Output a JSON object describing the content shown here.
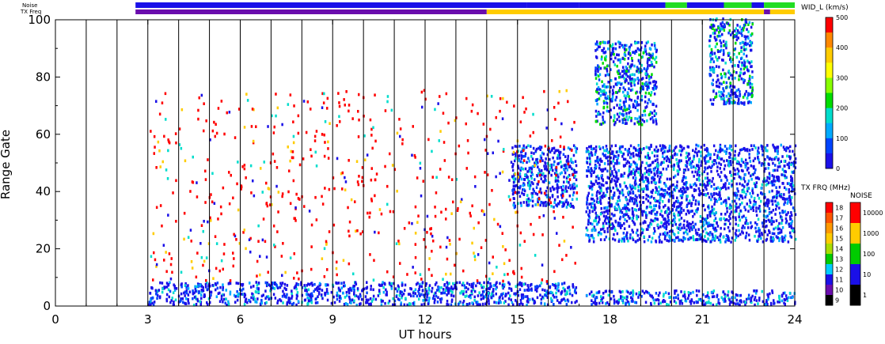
{
  "chart_data": {
    "type": "heatmap",
    "xlabel": "UT hours",
    "ylabel": "Range Gate",
    "xlim": [
      0,
      24
    ],
    "ylim": [
      0,
      100
    ],
    "xticks": [
      "0",
      "3",
      "6",
      "9",
      "12",
      "15",
      "18",
      "21",
      "24"
    ],
    "yticks": [
      "0",
      "20",
      "40",
      "60",
      "80",
      "100"
    ],
    "scan_boundary_hours": [
      1,
      2,
      3,
      4,
      5,
      6,
      7,
      8,
      9,
      10,
      11,
      12,
      13,
      14,
      15,
      16,
      18,
      19,
      20,
      21,
      22,
      23
    ],
    "data_gap_hours": [
      16.9,
      17.2
    ],
    "top_bars": {
      "noise_label": "Noise",
      "freq_label": "TX Freq",
      "noise_segments": [
        {
          "start": 2.6,
          "end": 15.3,
          "color": "#1a10e8"
        },
        {
          "start": 15.3,
          "end": 17.0,
          "color": "#1a10e8"
        },
        {
          "start": 17.0,
          "end": 19.8,
          "color": "#1a10e8"
        },
        {
          "start": 19.8,
          "end": 20.5,
          "color": "#22dd22"
        },
        {
          "start": 20.5,
          "end": 21.7,
          "color": "#1a10e8"
        },
        {
          "start": 21.7,
          "end": 22.6,
          "color": "#22dd22"
        },
        {
          "start": 22.6,
          "end": 23.0,
          "color": "#1a10e8"
        },
        {
          "start": 23.0,
          "end": 24.0,
          "color": "#22dd22"
        }
      ],
      "freq_segments": [
        {
          "start": 2.6,
          "end": 14.0,
          "color": "#6a0dad"
        },
        {
          "start": 14.0,
          "end": 23.0,
          "color": "#ffcc00"
        },
        {
          "start": 23.0,
          "end": 23.2,
          "color": "#6a0dad"
        },
        {
          "start": 23.2,
          "end": 24.0,
          "color": "#ffcc00"
        }
      ]
    },
    "echo_regions": [
      {
        "name": "near-range band",
        "x_range": [
          3.0,
          16.9
        ],
        "gate_range": [
          0,
          8
        ],
        "dominant_width_kms": "0-100"
      },
      {
        "name": "near-range band",
        "x_range": [
          17.2,
          24.0
        ],
        "gate_range": [
          0,
          5
        ],
        "dominant_width_kms": "0-100"
      },
      {
        "name": "mid-range patch",
        "x_range": [
          14.8,
          16.9
        ],
        "gate_range": [
          34,
          56
        ],
        "dominant_width_kms": "0-100"
      },
      {
        "name": "mid-range patch",
        "x_range": [
          17.2,
          24.0
        ],
        "gate_range": [
          22,
          56
        ],
        "dominant_width_kms": "0-100"
      },
      {
        "name": "far-range patch",
        "x_range": [
          17.5,
          19.5
        ],
        "gate_range": [
          63,
          92
        ],
        "dominant_width_kms": "0-200"
      },
      {
        "name": "far-range patch",
        "x_range": [
          21.2,
          22.6
        ],
        "gate_range": [
          70,
          100
        ],
        "dominant_width_kms": "0-200"
      },
      {
        "name": "scattered high-width echoes",
        "x_range": [
          3.0,
          16.9
        ],
        "gate_range": [
          8,
          75
        ],
        "dominant_width_kms": "450-500"
      }
    ],
    "colorbars": [
      {
        "title": "WID_L (km/s)",
        "labels": [
          "500",
          "400",
          "300",
          "200",
          "100",
          "0"
        ],
        "colors": [
          "#ff0000",
          "#ff8800",
          "#ffcc00",
          "#ffff00",
          "#88ff00",
          "#00dd00",
          "#00ddcc",
          "#00aaff",
          "#0044ff",
          "#1a10e8"
        ]
      },
      {
        "title": "TX FRQ (MHz)",
        "labels": [
          "18",
          "17",
          "16",
          "15",
          "14",
          "13",
          "12",
          "11",
          "10",
          "9"
        ],
        "colors": [
          "#ff0000",
          "#ff5500",
          "#ff9900",
          "#ffcc00",
          "#aadd00",
          "#00cc00",
          "#00ccff",
          "#1a10e8",
          "#6a0dad",
          "#000000"
        ]
      },
      {
        "title": "NOISE",
        "labels": [
          "10000",
          "1000",
          "100",
          "10",
          "1"
        ],
        "colors": [
          "#ff0000",
          "#ffcc00",
          "#00cc00",
          "#1a10e8",
          "#000000"
        ]
      }
    ]
  }
}
